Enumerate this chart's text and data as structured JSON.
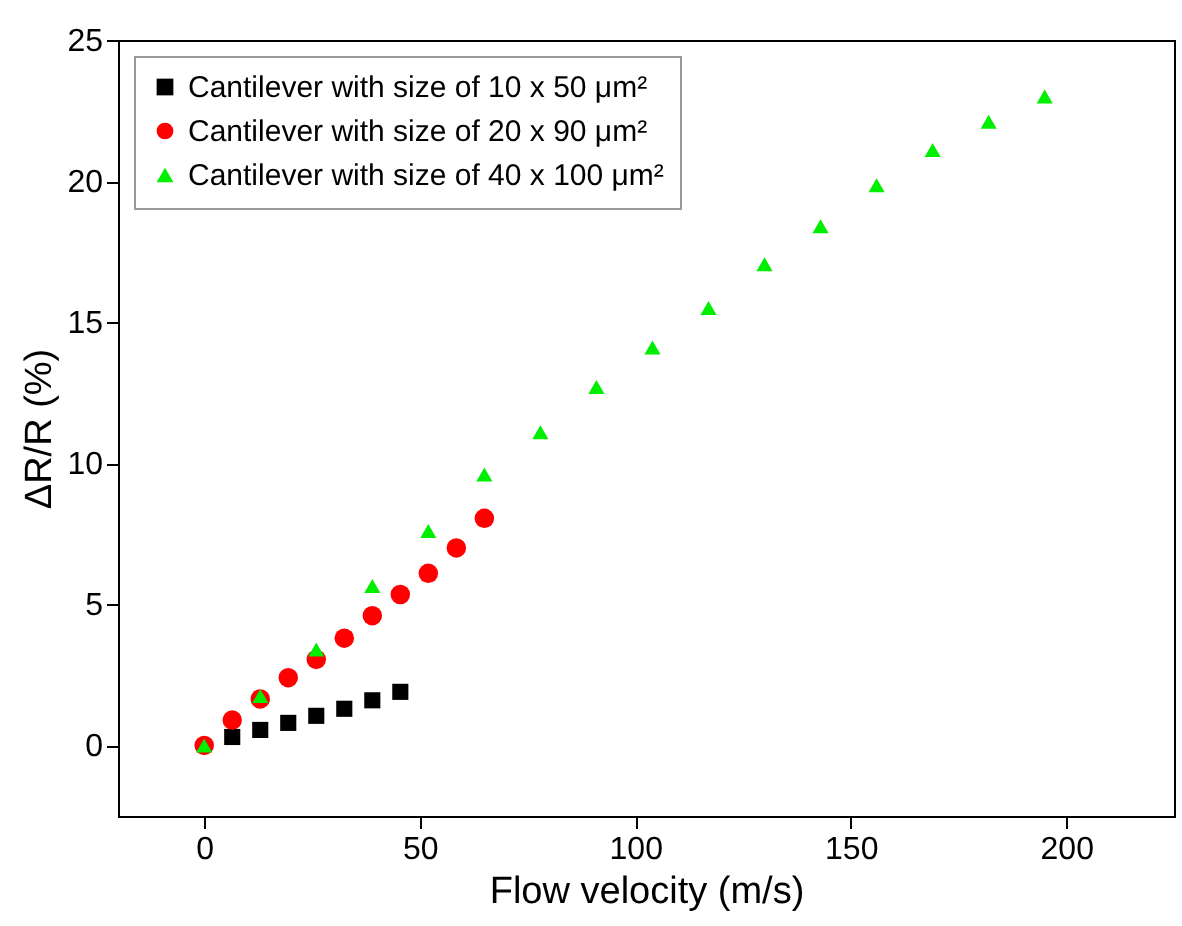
{
  "chart_data": {
    "type": "scatter",
    "xlabel": "Flow velocity (m/s)",
    "ylabel": "ΔR/R (%)",
    "xlim": [
      -20,
      225
    ],
    "ylim": [
      -2.5,
      25
    ],
    "xticks": [
      0,
      50,
      100,
      150,
      200
    ],
    "yticks": [
      0,
      5,
      10,
      15,
      20,
      25
    ],
    "grid": false,
    "legend": "top left",
    "series": [
      {
        "name": "Cantilever with size of 10 x 50 μm²",
        "color": "#000000",
        "marker": "square",
        "x": [
          6.5,
          13,
          19.5,
          26,
          32.5,
          39,
          45.5
        ],
        "values": [
          0.3,
          0.55,
          0.8,
          1.05,
          1.3,
          1.6,
          1.9
        ]
      },
      {
        "name": "Cantilever with size of 20 x 90 μm²",
        "color": "#ff0000",
        "marker": "circle",
        "x": [
          0,
          6.5,
          13,
          19.5,
          26,
          32.5,
          39,
          45.5,
          52,
          58.5,
          65
        ],
        "values": [
          0,
          0.9,
          1.65,
          2.4,
          3.05,
          3.8,
          4.6,
          5.35,
          6.1,
          7.0,
          8.05
        ]
      },
      {
        "name": "Cantilever with size of 40 x 100 μm²",
        "color": "#00ee00",
        "marker": "triangle",
        "x": [
          0,
          13,
          26,
          39,
          52,
          65,
          78,
          91,
          104,
          117,
          130,
          143,
          156,
          169,
          182,
          195
        ],
        "values": [
          0,
          1.75,
          3.4,
          5.65,
          7.6,
          9.6,
          11.1,
          12.7,
          14.1,
          15.5,
          17.05,
          18.4,
          19.85,
          21.1,
          22.1,
          23.0
        ]
      }
    ]
  }
}
